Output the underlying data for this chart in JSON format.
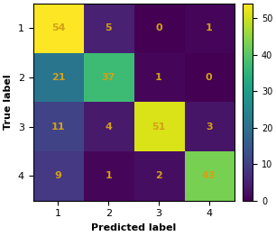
{
  "matrix": [
    [
      54,
      5,
      0,
      1
    ],
    [
      21,
      37,
      1,
      0
    ],
    [
      11,
      4,
      51,
      3
    ],
    [
      9,
      1,
      2,
      43
    ]
  ],
  "x_labels": [
    "1",
    "2",
    "3",
    "4"
  ],
  "y_labels": [
    "1",
    "2",
    "3",
    "4"
  ],
  "xlabel": "Predicted label",
  "ylabel": "True label",
  "colormap": "viridis",
  "text_color": "#d4a017",
  "figsize": [
    3.06,
    2.62
  ],
  "dpi": 100,
  "tick_fontsize": 8,
  "label_fontsize": 8,
  "annotation_fontsize": 8,
  "cbar_tick_fontsize": 7
}
